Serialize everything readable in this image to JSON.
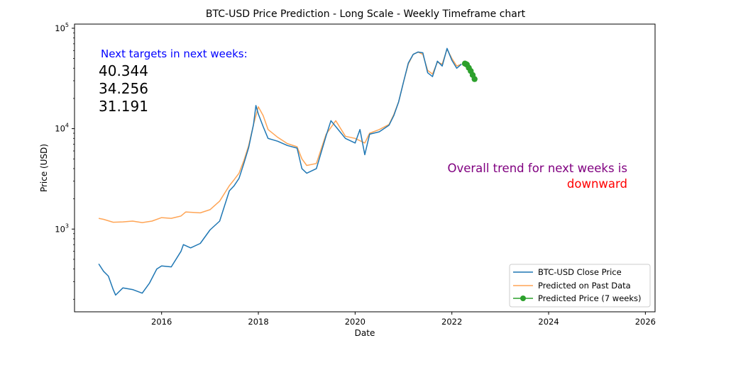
{
  "chart_data": {
    "type": "line",
    "title": "BTC-USD Price Prediction - Long Scale - Weekly Timeframe chart",
    "xlabel": "Date",
    "ylabel": "Price (USD)",
    "yscale": "log",
    "xlim": [
      2014.2,
      2026.2
    ],
    "ylim": [
      150,
      110000
    ],
    "x_ticks": [
      2016,
      2018,
      2020,
      2022,
      2024,
      2026
    ],
    "x_tick_labels": [
      "2016",
      "2018",
      "2020",
      "2022",
      "2024",
      "2026"
    ],
    "y_ticks": [
      1000,
      10000,
      100000
    ],
    "y_tick_labels": [
      {
        "base": "10",
        "exp": "3"
      },
      {
        "base": "10",
        "exp": "4"
      },
      {
        "base": "10",
        "exp": "5"
      }
    ],
    "legend_position": "bottom-right",
    "series": [
      {
        "name": "BTC-USD Close Price",
        "color": "#1f77b4",
        "x": [
          2014.7,
          2014.8,
          2014.9,
          2015.0,
          2015.05,
          2015.2,
          2015.4,
          2015.6,
          2015.75,
          2015.9,
          2016.0,
          2016.2,
          2016.4,
          2016.45,
          2016.6,
          2016.8,
          2017.0,
          2017.2,
          2017.4,
          2017.5,
          2017.6,
          2017.7,
          2017.8,
          2017.9,
          2017.95,
          2018.0,
          2018.1,
          2018.2,
          2018.4,
          2018.6,
          2018.8,
          2018.9,
          2019.0,
          2019.2,
          2019.4,
          2019.5,
          2019.6,
          2019.8,
          2020.0,
          2020.1,
          2020.2,
          2020.3,
          2020.5,
          2020.7,
          2020.8,
          2020.9,
          2021.0,
          2021.1,
          2021.2,
          2021.3,
          2021.4,
          2021.5,
          2021.6,
          2021.7,
          2021.8,
          2021.9,
          2022.0,
          2022.1,
          2022.2
        ],
        "values": [
          450,
          380,
          340,
          250,
          220,
          260,
          250,
          230,
          290,
          400,
          430,
          420,
          600,
          700,
          650,
          720,
          980,
          1200,
          2400,
          2700,
          3200,
          4500,
          6500,
          11000,
          17000,
          14000,
          10500,
          8000,
          7500,
          6800,
          6400,
          4000,
          3600,
          4000,
          8500,
          12000,
          10500,
          8000,
          7200,
          9800,
          5500,
          8800,
          9300,
          10800,
          13500,
          18500,
          29000,
          45000,
          55000,
          58000,
          57000,
          36000,
          33000,
          47000,
          42000,
          63000,
          48000,
          40000,
          44000
        ]
      },
      {
        "name": "Predicted on Past Data",
        "color": "#ff7f0e",
        "x": [
          2014.7,
          2014.8,
          2015.0,
          2015.2,
          2015.4,
          2015.6,
          2015.8,
          2016.0,
          2016.2,
          2016.4,
          2016.5,
          2016.8,
          2017.0,
          2017.2,
          2017.4,
          2017.5,
          2017.6,
          2017.7,
          2017.8,
          2017.9,
          2018.0,
          2018.1,
          2018.2,
          2018.4,
          2018.6,
          2018.8,
          2018.9,
          2019.0,
          2019.2,
          2019.4,
          2019.6,
          2019.8,
          2020.0,
          2020.2,
          2020.3,
          2020.5,
          2020.7,
          2020.8,
          2020.9,
          2021.0,
          2021.1,
          2021.2,
          2021.3,
          2021.4,
          2021.5,
          2021.6,
          2021.7,
          2021.8,
          2021.9,
          2022.0,
          2022.1,
          2022.2
        ],
        "values": [
          1280,
          1250,
          1170,
          1180,
          1200,
          1160,
          1200,
          1300,
          1280,
          1350,
          1480,
          1450,
          1560,
          1900,
          2700,
          3100,
          3600,
          4800,
          6800,
          11000,
          16500,
          13500,
          9800,
          8200,
          7100,
          6600,
          5000,
          4300,
          4500,
          8800,
          12000,
          8400,
          8000,
          7200,
          9000,
          9800,
          11000,
          13800,
          18500,
          29000,
          44000,
          55000,
          58000,
          55000,
          38000,
          35000,
          46000,
          44000,
          62000,
          50000,
          42000,
          44000
        ]
      },
      {
        "name": "Predicted Price (7 weeks)",
        "color": "#2ca02c",
        "marker": "circle",
        "x": [
          2022.27,
          2022.29,
          2022.31,
          2022.35,
          2022.39,
          2022.43,
          2022.47
        ],
        "values": [
          44500,
          44000,
          43500,
          40344,
          37500,
          34256,
          31191
        ]
      }
    ]
  },
  "annotations": {
    "targets_heading": "Next targets in next weeks:",
    "targets": [
      "40.344",
      "34.256",
      "31.191"
    ],
    "trend_line1": "Overall trend for next weeks is",
    "trend_line2": "downward"
  },
  "colors": {
    "targets_heading": "#0000ff",
    "targets": "#000000",
    "trend_line1": "#800080",
    "trend_line2": "#ff0000",
    "axes": "#000000"
  }
}
